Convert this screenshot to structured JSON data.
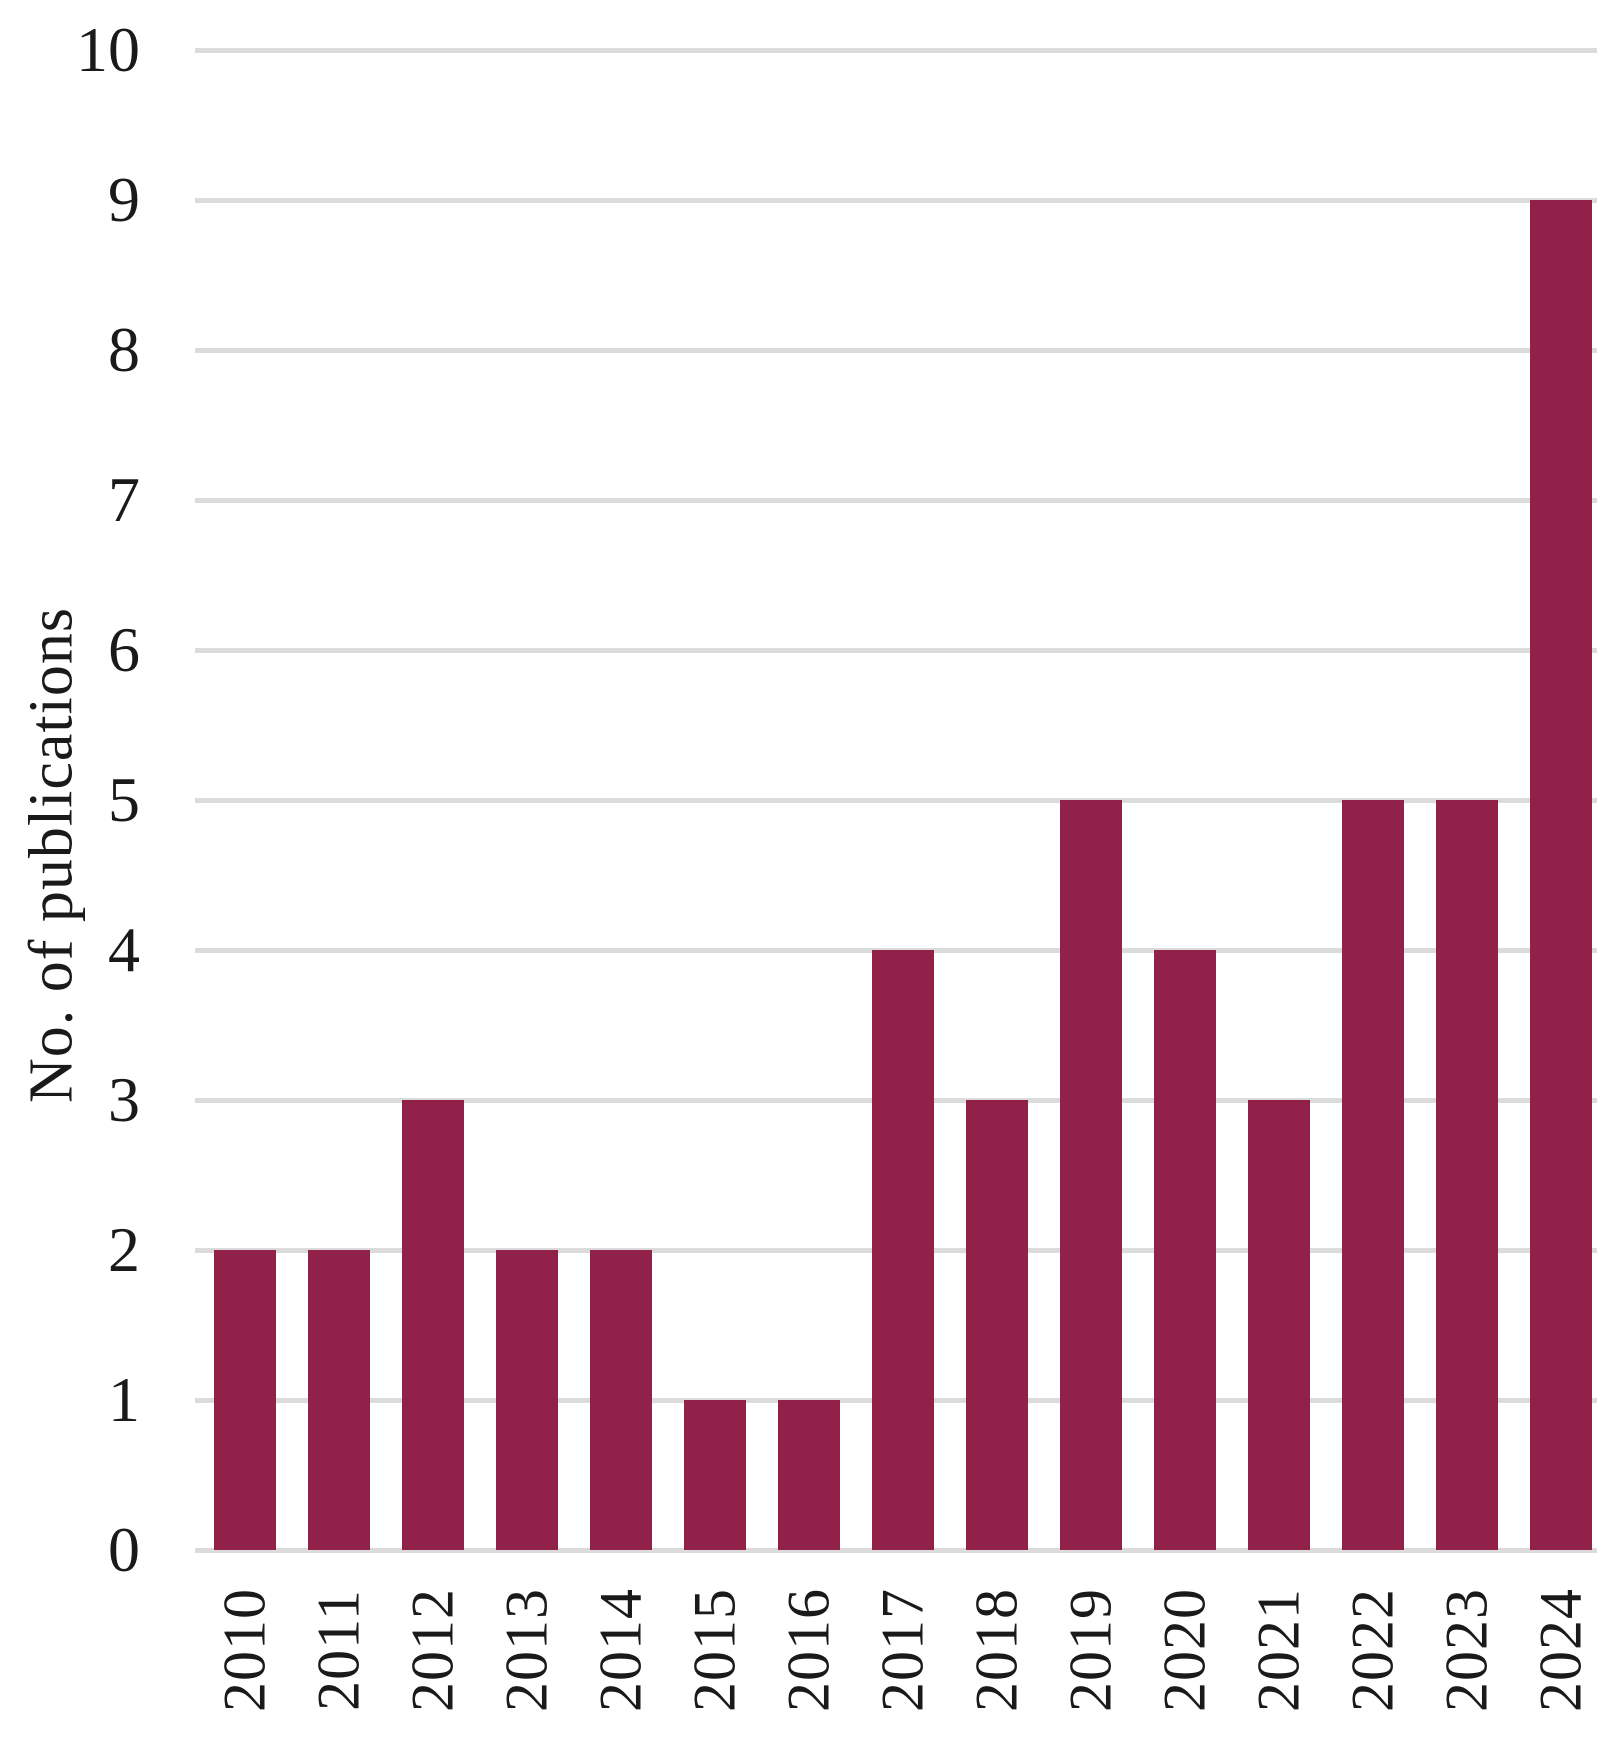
{
  "chart_data": {
    "type": "bar",
    "categories": [
      "2010",
      "2011",
      "2012",
      "2013",
      "2014",
      "2015",
      "2016",
      "2017",
      "2018",
      "2019",
      "2020",
      "2021",
      "2022",
      "2023",
      "2024"
    ],
    "values": [
      2,
      2,
      3,
      2,
      2,
      1,
      1,
      4,
      3,
      5,
      4,
      3,
      5,
      5,
      9
    ],
    "title": "",
    "xlabel": "",
    "ylabel": "No. of publications",
    "ylim": [
      0,
      10
    ],
    "yticks": [
      0,
      1,
      2,
      3,
      4,
      5,
      6,
      7,
      8,
      9,
      10
    ],
    "grid": true,
    "legend": "none",
    "bar_color": "#92214a",
    "gridline_color": "#dbdbdb",
    "text_color": "#1a1a1a"
  }
}
